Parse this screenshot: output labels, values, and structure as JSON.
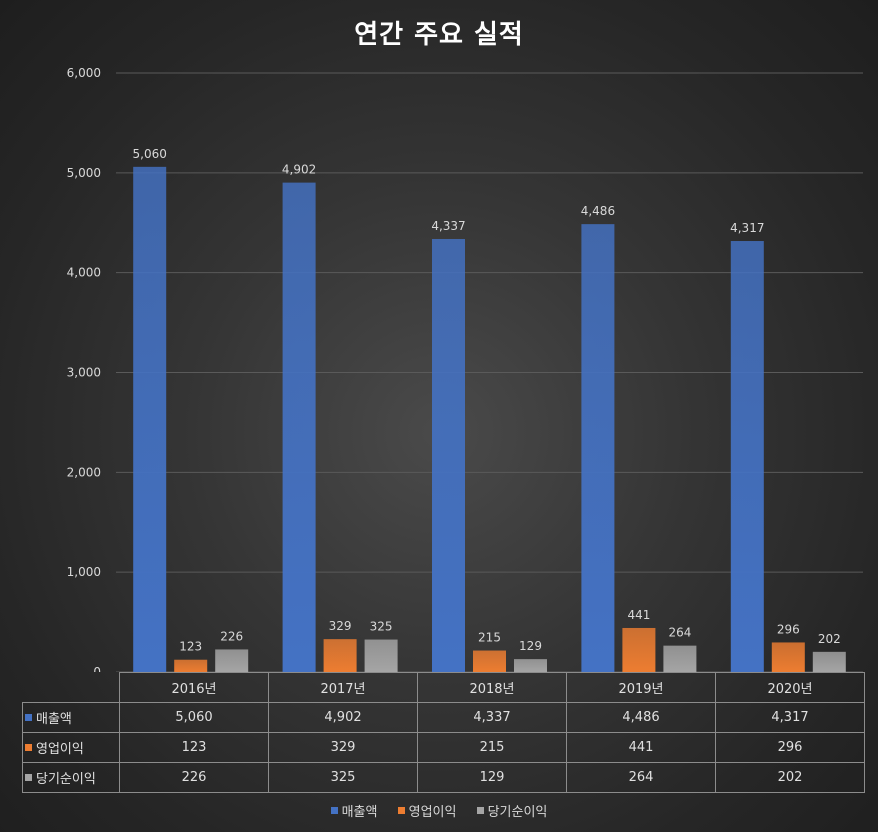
{
  "chart_data": {
    "type": "bar",
    "title": "연간 주요 실적",
    "categories": [
      "2016년",
      "2017년",
      "2018년",
      "2019년",
      "2020년"
    ],
    "series": [
      {
        "name": "매출액",
        "color": "#4472c4",
        "values": [
          5060,
          4902,
          4337,
          4486,
          4317
        ],
        "labels": [
          "5,060",
          "4,902",
          "4,337",
          "4,486",
          "4,317"
        ]
      },
      {
        "name": "영업이익",
        "color": "#ed7d31",
        "values": [
          123,
          329,
          215,
          441,
          296
        ],
        "labels": [
          "123",
          "329",
          "215",
          "441",
          "296"
        ]
      },
      {
        "name": "당기순이익",
        "color": "#a5a5a5",
        "values": [
          226,
          325,
          129,
          264,
          202
        ],
        "labels": [
          "226",
          "325",
          "129",
          "264",
          "202"
        ]
      }
    ],
    "ylim": [
      0,
      6000
    ],
    "yticks": [
      0,
      1000,
      2000,
      3000,
      4000,
      5000,
      6000
    ],
    "ytick_labels": [
      "0",
      "1,000",
      "2,000",
      "3,000",
      "4,000",
      "5,000",
      "6,000"
    ],
    "grid": true,
    "legend_position": "bottom",
    "data_table": true
  }
}
